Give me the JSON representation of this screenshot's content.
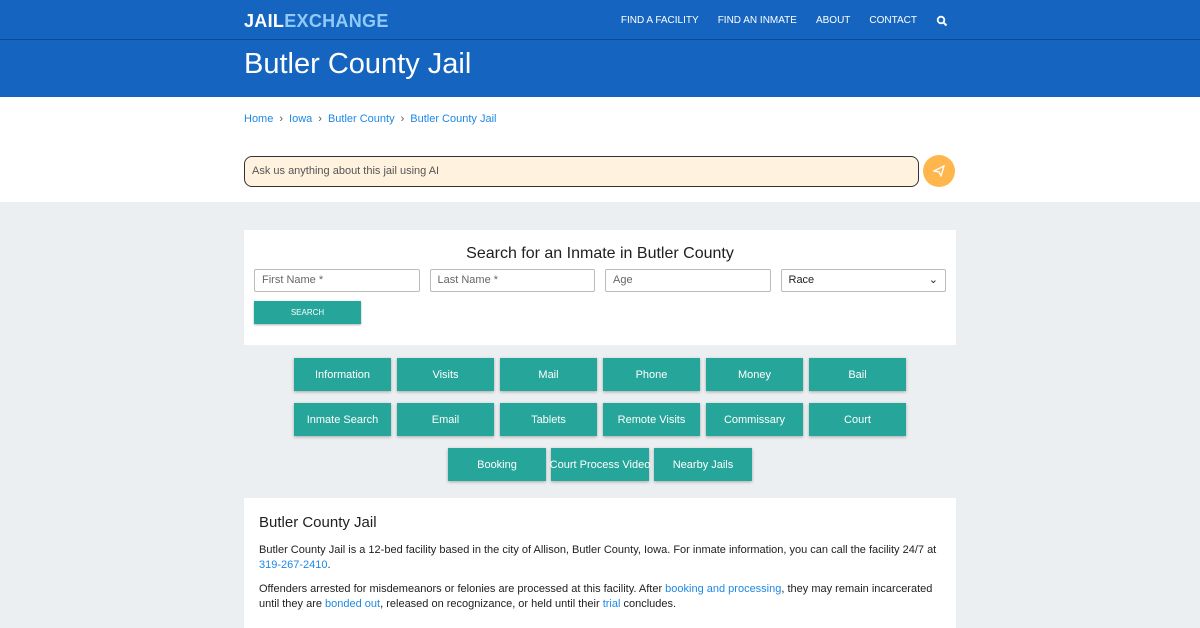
{
  "header": {
    "logo_a": "JAIL",
    "logo_b": "EXCHANGE",
    "nav": [
      "FIND A FACILITY",
      "FIND AN INMATE",
      "ABOUT",
      "CONTACT"
    ],
    "search_icon": "search-icon"
  },
  "title": "Butler County Jail",
  "breadcrumb": [
    "Home",
    "Iowa",
    "Butler County",
    "Butler County Jail"
  ],
  "ai": {
    "placeholder": "Ask us anything about this jail using AI",
    "send_icon": "paper-plane-icon"
  },
  "search": {
    "title": "Search for an Inmate in Butler County",
    "first": "First Name *",
    "last": "Last Name *",
    "age": "Age",
    "race": "Race",
    "button": "SEARCH"
  },
  "buttons": [
    "Information",
    "Visits",
    "Mail",
    "Phone",
    "Money",
    "Bail",
    "Inmate Search",
    "Email",
    "Tablets",
    "Remote Visits",
    "Commissary",
    "Court",
    "Booking",
    "Court Process Video",
    "Nearby Jails"
  ],
  "info": {
    "heading": "Butler County Jail",
    "p1a": "Butler County Jail is a 12-bed facility based in the city of Allison, Butler County, Iowa. For inmate information, you can call the facility 24/7 at ",
    "phone": "319-267-2410",
    "p1b": ".",
    "p2a": "Offenders arrested for misdemeanors or felonies are processed at this facility. After ",
    "link1": "booking and processing",
    "p2b": ", they may remain incarcerated until they are ",
    "link2": "bonded out",
    "p2c": ", released on recognizance, or held until their ",
    "link3": "trial",
    "p2d": " concludes."
  },
  "colors": {
    "primary": "#1565c0",
    "teal": "#26a69a",
    "link": "#1e88e5",
    "ai_bg": "#fff3e0",
    "send": "#ffb74d"
  }
}
